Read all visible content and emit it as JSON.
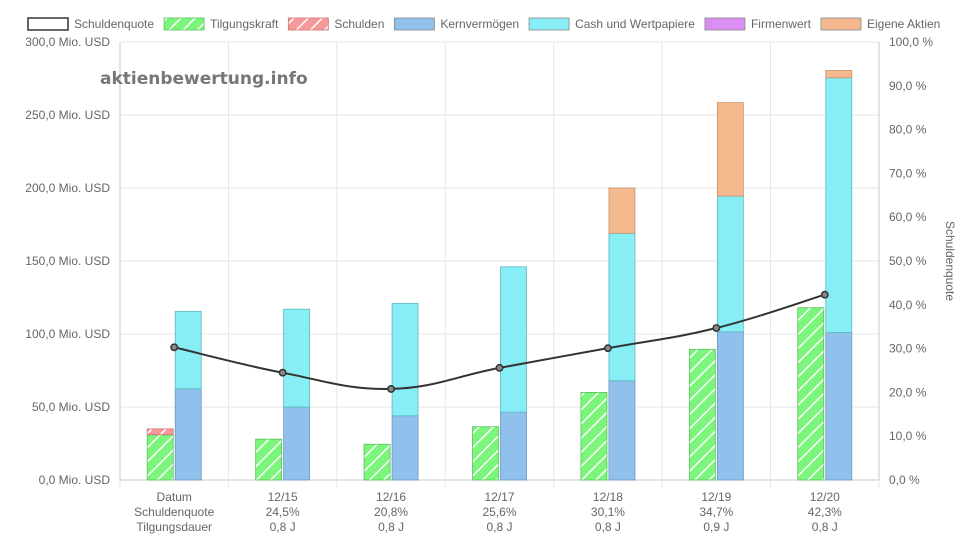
{
  "chart_data": {
    "type": "bar",
    "watermark": "aktienbewertung.info",
    "legend": [
      {
        "key": "schuldenquote",
        "label": "Schuldenquote",
        "kind": "line"
      },
      {
        "key": "tilgungskraft",
        "label": "Tilgungskraft",
        "kind": "hatched",
        "color": "#7cf57c"
      },
      {
        "key": "schulden",
        "label": "Schulden",
        "kind": "hatched",
        "color": "#f59a9a"
      },
      {
        "key": "kernvermoegen",
        "label": "Kernvermögen",
        "kind": "solid",
        "color": "#8fc1ec"
      },
      {
        "key": "cash",
        "label": "Cash und Wertpapiere",
        "kind": "solid",
        "color": "#86eef4"
      },
      {
        "key": "firmenwert",
        "label": "Firmenwert",
        "kind": "solid",
        "color": "#d98ef2"
      },
      {
        "key": "eigene_aktien",
        "label": "Eigene Aktien",
        "kind": "solid",
        "color": "#f4b98c"
      }
    ],
    "categories": [
      "Datum",
      "12/15",
      "12/16",
      "12/17",
      "12/18",
      "12/19",
      "12/20"
    ],
    "row_labels": {
      "schuldenquote": [
        "Schuldenquote",
        "24,5%",
        "20,8%",
        "25,6%",
        "30,1%",
        "34,7%",
        "42,3%"
      ],
      "tilgungsdauer": [
        "Tilgungsdauer",
        "0,8 J",
        "0,8 J",
        "0,8 J",
        "0,8 J",
        "0,9 J",
        "0,8 J"
      ]
    },
    "series": {
      "tilgungskraft": [
        31,
        28,
        24.5,
        36.5,
        60,
        89.5,
        118
      ],
      "schulden": [
        4,
        0,
        0,
        0,
        0,
        0,
        0
      ],
      "kernvermoegen": [
        62.5,
        50,
        44,
        46.5,
        68,
        101.5,
        101
      ],
      "cash": [
        53,
        67,
        77,
        99.5,
        101,
        93,
        174.5
      ],
      "firmenwert": [
        0,
        0,
        0,
        0,
        0,
        0,
        0
      ],
      "eigene_aktien": [
        0,
        0,
        0,
        0,
        31,
        64,
        5
      ],
      "schuldenquote": [
        30.3,
        24.5,
        20.8,
        25.6,
        30.1,
        34.7,
        42.3
      ]
    },
    "y_left": {
      "min": 0,
      "max": 300,
      "ticks": [
        "0,0 Mio. USD",
        "50,0 Mio. USD",
        "100,0 Mio. USD",
        "150,0 Mio. USD",
        "200,0 Mio. USD",
        "250,0 Mio. USD",
        "300,0 Mio. USD"
      ]
    },
    "y_right": {
      "min": 0,
      "max": 100,
      "title": "Schuldenquote",
      "ticks": [
        "0,0 %",
        "10,0 %",
        "20,0 %",
        "30,0 %",
        "40,0 %",
        "50,0 %",
        "60,0 %",
        "70,0 %",
        "80,0 %",
        "90,0 %",
        "100,0 %"
      ]
    }
  }
}
